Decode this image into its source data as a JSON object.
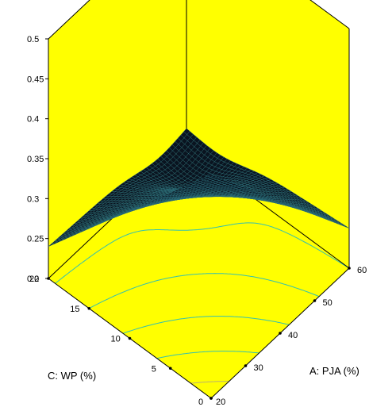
{
  "colors": {
    "background": "#ffffff",
    "panel": "#ffff00",
    "frame": "#000000",
    "surface_dark": "#0a1420",
    "surface_mesh": "#2b6f7a",
    "contour": "#33c0b0",
    "contour_light": "#b8b070"
  },
  "chart_data": {
    "type": "surface",
    "xlabel": "A: PJA (%)",
    "ylabel": "C: WP (%)",
    "zlabel": "",
    "x": {
      "range": [
        20,
        60
      ],
      "ticks": [
        20,
        30,
        40,
        50,
        60
      ],
      "tick_labels": [
        "20",
        "30",
        "40",
        "50",
        "60"
      ]
    },
    "y": {
      "range": [
        0,
        20
      ],
      "ticks": [
        0,
        5,
        10,
        15,
        20
      ],
      "tick_labels": [
        "0",
        "5",
        "10",
        "15",
        "20"
      ]
    },
    "z": {
      "range": [
        0.2,
        0.5
      ],
      "ticks": [
        0.2,
        0.25,
        0.3,
        0.35,
        0.4,
        0.45,
        0.5
      ],
      "tick_labels": [
        "0.2",
        "0.25",
        "0.3",
        "0.35",
        "0.4",
        "0.45",
        "0.5"
      ]
    },
    "surface_corners": [
      {
        "x": 20,
        "y": 0,
        "z": 0.48
      },
      {
        "x": 60,
        "y": 0,
        "z": 0.25
      },
      {
        "x": 20,
        "y": 20,
        "z": 0.24
      },
      {
        "x": 60,
        "y": 20,
        "z": 0.23
      }
    ],
    "surface_min": {
      "x": 52,
      "y": 16,
      "z": 0.21
    },
    "grid": true,
    "legend": "none"
  }
}
